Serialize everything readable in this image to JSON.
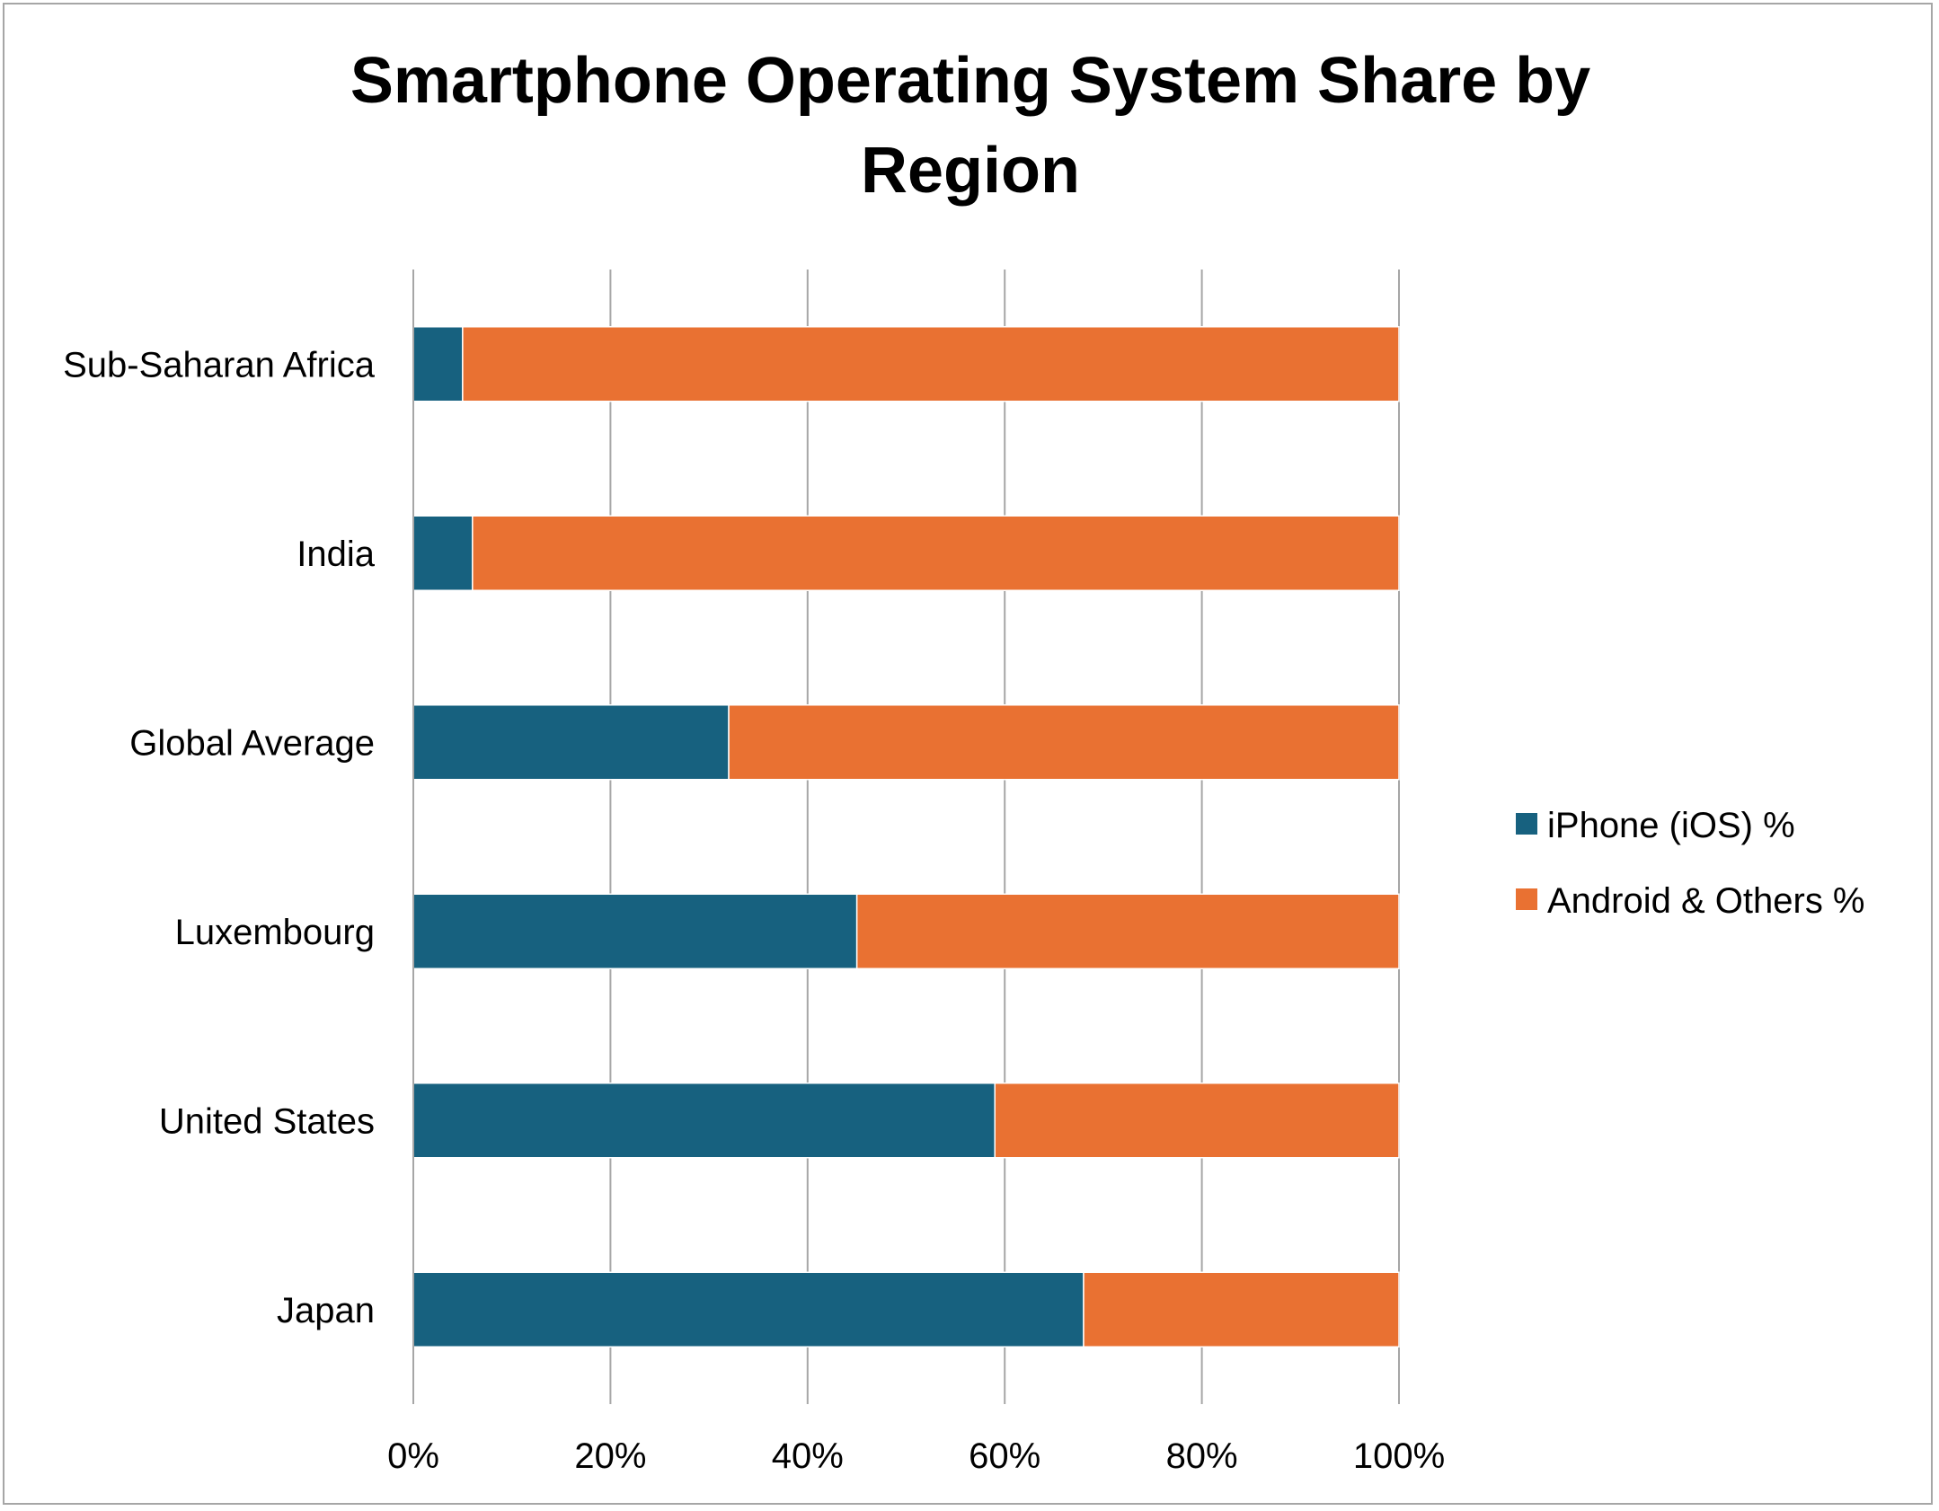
{
  "chart_data": {
    "type": "bar",
    "orientation": "horizontal",
    "stacking": "percent",
    "title": "Smartphone Operating System Share by Region",
    "categories": [
      "Sub-Saharan Africa",
      "India",
      "Global Average",
      "Luxembourg",
      "United States",
      "Japan"
    ],
    "series": [
      {
        "name": "iPhone (iOS) %",
        "color": "#17617f",
        "values": [
          5,
          6,
          32,
          45,
          59,
          68
        ]
      },
      {
        "name": "Android & Others %",
        "color": "#e97132",
        "values": [
          95,
          94,
          68,
          55,
          41,
          32
        ]
      }
    ],
    "xlim": [
      0,
      100
    ],
    "x_ticks": [
      "0%",
      "20%",
      "40%",
      "60%",
      "80%",
      "100%"
    ],
    "grid": true,
    "legend_position": "right"
  }
}
